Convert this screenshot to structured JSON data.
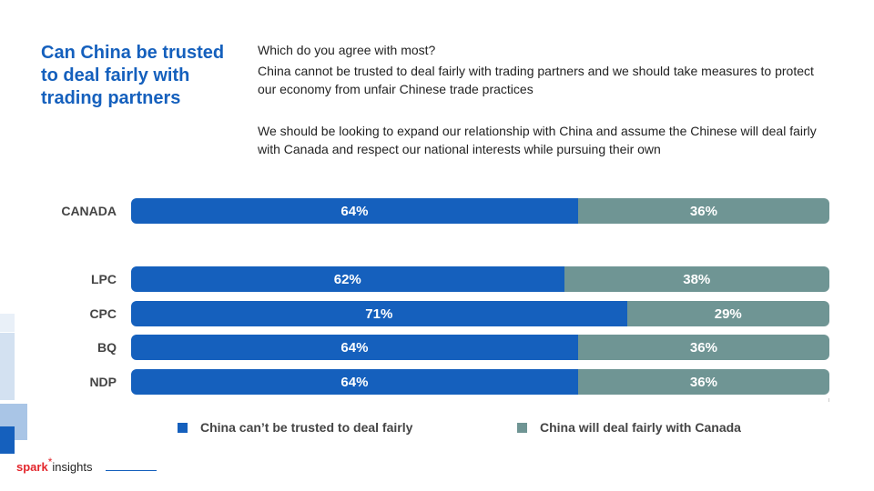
{
  "title": "Can China be trusted to deal fairly with trading partners",
  "question": "Which do you agree with most?",
  "options": [
    "China cannot be trusted to deal fairly with trading partners and we should take measures to protect our economy from unfair Chinese trade practices",
    "We should be looking to expand our relationship with China and assume the Chinese will deal fairly with Canada and respect our national interests while pursuing their own"
  ],
  "colors": {
    "series_a": "#1560bd",
    "series_b": "#6f9594",
    "title": "#1560bd"
  },
  "chart_data": {
    "type": "bar",
    "orientation": "horizontal",
    "stacked": true,
    "categories": [
      "CANADA",
      "LPC",
      "CPC",
      "BQ",
      "NDP"
    ],
    "series": [
      {
        "name": "China can’t be trusted to deal fairly",
        "values": [
          64,
          62,
          71,
          64,
          64
        ],
        "labels": [
          "64%",
          "62%",
          "71%",
          "64%",
          "64%"
        ]
      },
      {
        "name": "China will deal fairly with Canada",
        "values": [
          36,
          38,
          29,
          36,
          36
        ],
        "labels": [
          "36%",
          "38%",
          "29%",
          "36%",
          "36%"
        ]
      }
    ],
    "xlim": [
      0,
      100
    ],
    "legend": "bottom",
    "grid": false
  },
  "logo": {
    "brand": "spark",
    "star": "*",
    "suffix": "insights"
  }
}
